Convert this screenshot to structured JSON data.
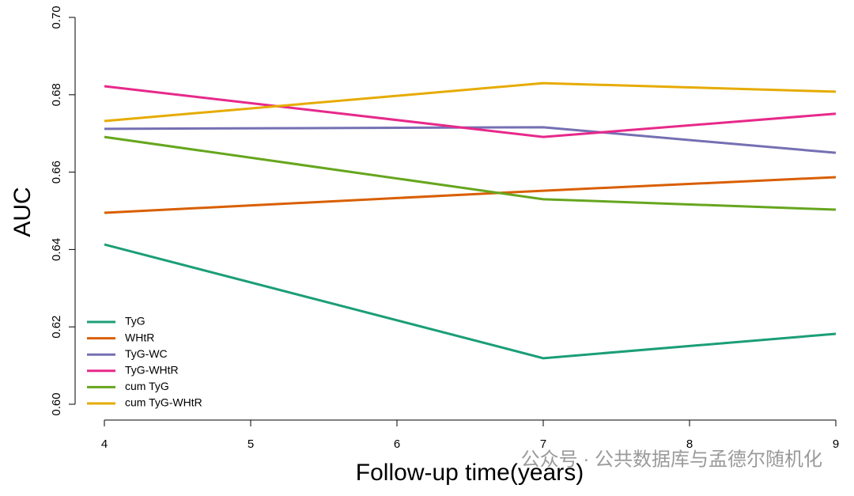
{
  "chart_data": {
    "type": "line",
    "x_label": "Follow-up time(years)",
    "y_label": "AUC",
    "x": [
      4,
      7,
      9
    ],
    "xlim": [
      4,
      9
    ],
    "xticks": [
      4,
      5,
      6,
      7,
      8,
      9
    ],
    "ylim": [
      0.6,
      0.7
    ],
    "yticks": [
      {
        "value": 0.6,
        "label": "0.60"
      },
      0.62,
      0.64,
      0.66,
      0.68,
      {
        "value": 0.7,
        "label": "0.70"
      }
    ],
    "legend": "bottom-left",
    "watermark": "公众号 · 公共数据库与孟德尔随机化",
    "series": [
      {
        "name": "TyG",
        "color": "#1b9e77",
        "values": [
          0.6413,
          0.6119,
          0.6182
        ]
      },
      {
        "name": "WHtR",
        "color": "#d95f02",
        "values": [
          0.6495,
          0.6552,
          0.6587
        ]
      },
      {
        "name": "TyG-WC",
        "color": "#7570b3",
        "values": [
          0.6712,
          0.6716,
          0.665
        ]
      },
      {
        "name": "TyG-WHtR",
        "color": "#e7298a",
        "values": [
          0.6822,
          0.6691,
          0.6751
        ]
      },
      {
        "name": "cum TyG",
        "color": "#66a61e",
        "values": [
          0.6691,
          0.653,
          0.6503
        ]
      },
      {
        "name": "cum TyG-WHtR",
        "color": "#e6ab02",
        "values": [
          0.6732,
          0.683,
          0.6808
        ]
      }
    ]
  }
}
